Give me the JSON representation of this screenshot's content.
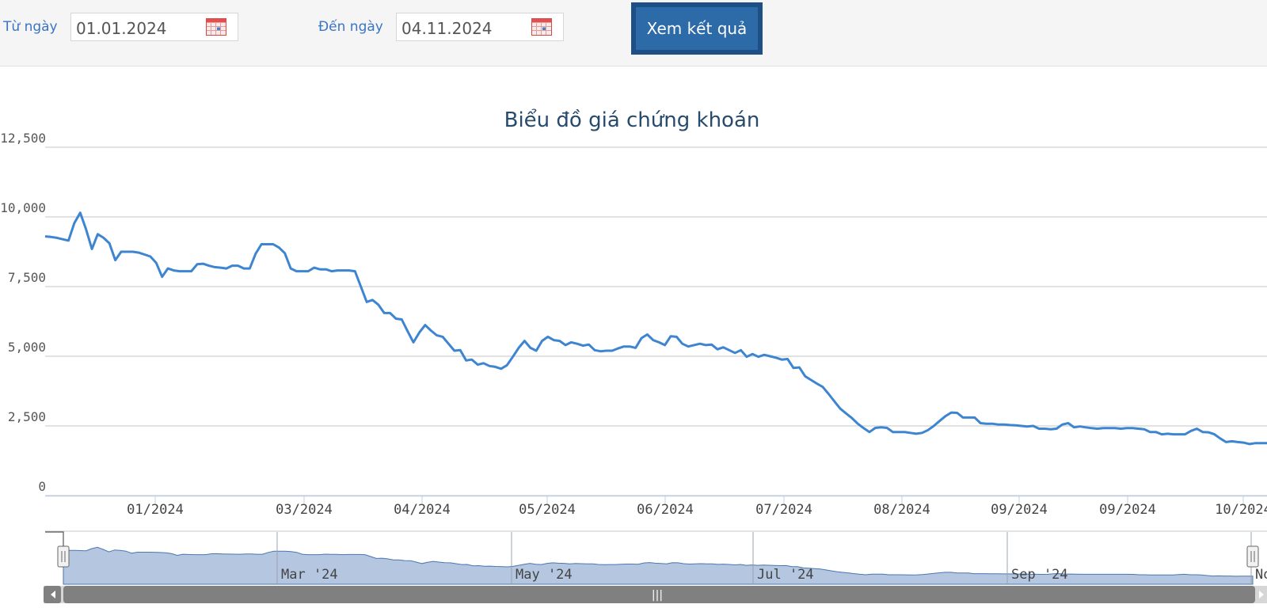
{
  "filter": {
    "from_label": "Từ ngày",
    "from_value": "01.01.2024",
    "to_label": "Đến ngày",
    "to_value": "04.11.2024",
    "submit_label": "Xem kết quả",
    "calendar_icon": "calendar-icon",
    "button_color": "#2c6aa8"
  },
  "chart_data": {
    "type": "line",
    "title": "Biểu đồ giá chứng khoán",
    "xlabel": "",
    "ylabel": "",
    "ylim": [
      0,
      12500
    ],
    "y_ticks": [
      0,
      2500,
      5000,
      7500,
      10000,
      12500
    ],
    "y_tick_labels": [
      "0",
      "2,500",
      "5,000",
      "7,500",
      "10,000",
      "12,500"
    ],
    "x_tick_labels": [
      "01/2024",
      "03/2024",
      "04/2024",
      "05/2024",
      "06/2024",
      "07/2024",
      "08/2024",
      "09/2024",
      "09/2024",
      "10/2024"
    ],
    "line_color": "#3d85d0",
    "grid": true,
    "series": [
      {
        "values": [
          9300,
          9280,
          9250,
          9200,
          9150,
          9780,
          10150,
          9550,
          8850,
          9380,
          9250,
          9050,
          8450,
          8750,
          8750,
          8750,
          8720,
          8650,
          8580,
          8350,
          7850,
          8150,
          8080,
          8050,
          8050,
          8050,
          8300,
          8320,
          8250,
          8200,
          8180,
          8150,
          8250,
          8250,
          8150,
          8150,
          8680,
          9020,
          9020,
          9020,
          8900,
          8700,
          8150,
          8050,
          8050,
          8050,
          8180,
          8120,
          8120,
          8050,
          8080,
          8080,
          8080,
          8050,
          7500,
          6950,
          7020,
          6850,
          6550,
          6550,
          6350,
          6320,
          5900,
          5500,
          5850,
          6120,
          5920,
          5750,
          5700,
          5450,
          5200,
          5220,
          4850,
          4880,
          4700,
          4750,
          4650,
          4620,
          4550,
          4680,
          4980,
          5300,
          5550,
          5300,
          5200,
          5550,
          5700,
          5580,
          5550,
          5400,
          5500,
          5450,
          5380,
          5420,
          5220,
          5180,
          5200,
          5200,
          5280,
          5350,
          5350,
          5300,
          5650,
          5780,
          5580,
          5500,
          5400,
          5720,
          5700,
          5450,
          5350,
          5400,
          5450,
          5400,
          5420,
          5250,
          5320,
          5220,
          5120,
          5220,
          4980,
          5080,
          4980,
          5050,
          5000,
          4950,
          4880,
          4900,
          4580,
          4600,
          4280,
          4150,
          4020,
          3900,
          3650,
          3380,
          3120,
          2950,
          2780,
          2580,
          2420,
          2280,
          2430,
          2450,
          2430,
          2280,
          2280,
          2280,
          2250,
          2220,
          2250,
          2350,
          2500,
          2680,
          2850,
          2980,
          2970,
          2800,
          2800,
          2800,
          2600,
          2580,
          2580,
          2550,
          2550,
          2530,
          2520,
          2500,
          2480,
          2500,
          2400,
          2400,
          2380,
          2400,
          2550,
          2600,
          2450,
          2480,
          2450,
          2420,
          2400,
          2420,
          2420,
          2420,
          2400,
          2420,
          2420,
          2400,
          2380,
          2280,
          2280,
          2200,
          2220,
          2200,
          2200,
          2200,
          2320,
          2400,
          2280,
          2270,
          2200,
          2050,
          1920,
          1950,
          1920,
          1900,
          1850,
          1880,
          1880,
          1880
        ]
      }
    ]
  },
  "navigator": {
    "labels": [
      "Mar '24",
      "May '24",
      "Jul '24",
      "Sep '24",
      "No"
    ],
    "fill_color": "#b4c6e0",
    "scroll_grip": "|||"
  }
}
